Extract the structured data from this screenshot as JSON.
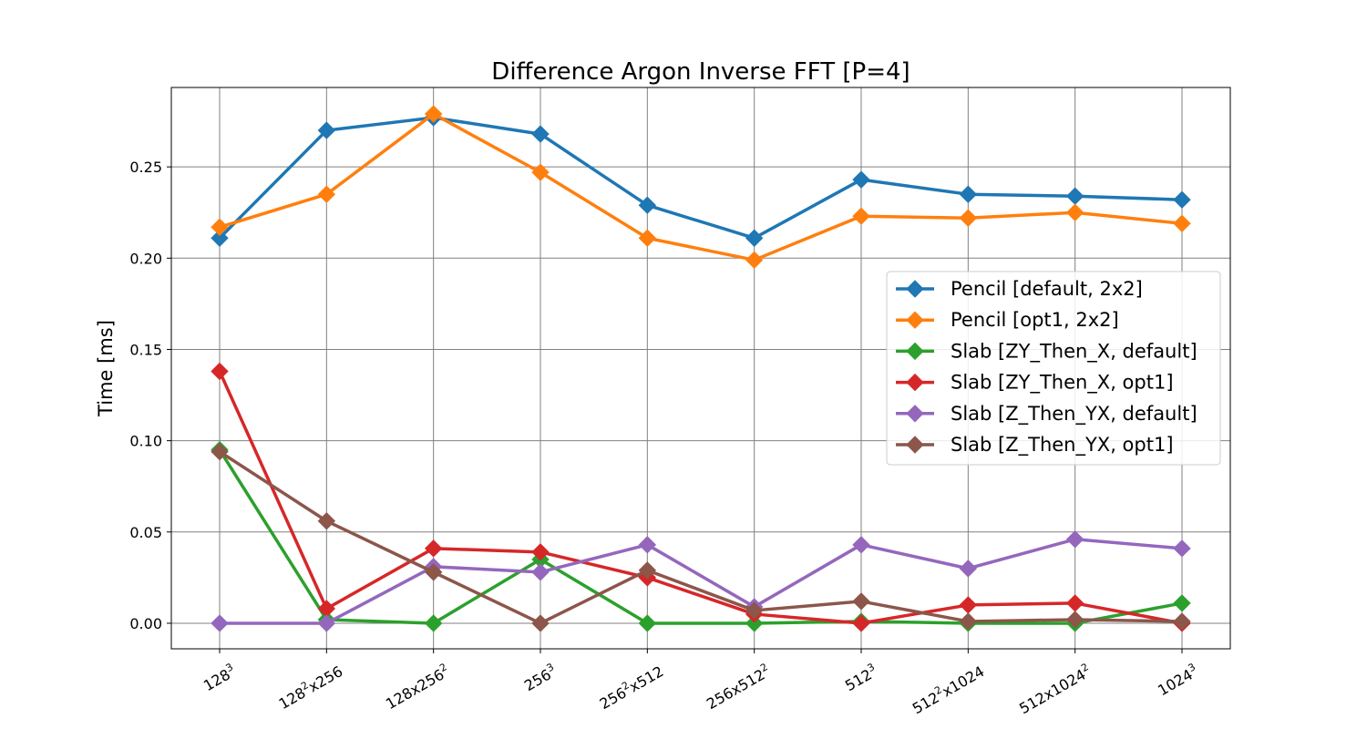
{
  "chart_data": {
    "type": "line",
    "title": "Difference Argon Inverse FFT [P=4]",
    "xlabel": "",
    "ylabel": "Time [ms]",
    "ylim": [
      -0.014,
      0.2935
    ],
    "yticks": [
      0.0,
      0.05,
      0.1,
      0.15,
      0.2,
      0.25
    ],
    "ytick_labels": [
      "0.00",
      "0.05",
      "0.10",
      "0.15",
      "0.20",
      "0.25"
    ],
    "categories": [
      {
        "base": "128",
        "sup": "3",
        "rest": "",
        "sup2": ""
      },
      {
        "base": "128",
        "sup": "2",
        "rest": "x256",
        "sup2": ""
      },
      {
        "base": "128x256",
        "sup": "2",
        "rest": "",
        "sup2": ""
      },
      {
        "base": "256",
        "sup": "3",
        "rest": "",
        "sup2": ""
      },
      {
        "base": "256",
        "sup": "2",
        "rest": "x512",
        "sup2": ""
      },
      {
        "base": "256x512",
        "sup": "2",
        "rest": "",
        "sup2": ""
      },
      {
        "base": "512",
        "sup": "3",
        "rest": "",
        "sup2": ""
      },
      {
        "base": "512",
        "sup": "2",
        "rest": "x1024",
        "sup2": ""
      },
      {
        "base": "512x1024",
        "sup": "2",
        "rest": "",
        "sup2": ""
      },
      {
        "base": "1024",
        "sup": "3",
        "rest": "",
        "sup2": ""
      }
    ],
    "grid": true,
    "legend_position": "center-right",
    "marker": "diamond",
    "series": [
      {
        "name": "Pencil [default, 2x2]",
        "color": "#1f77b4",
        "values": [
          0.211,
          0.27,
          0.277,
          0.268,
          0.229,
          0.211,
          0.243,
          0.235,
          0.234,
          0.232
        ]
      },
      {
        "name": "Pencil [opt1, 2x2]",
        "color": "#ff7f0e",
        "values": [
          0.217,
          0.235,
          0.279,
          0.247,
          0.211,
          0.199,
          0.223,
          0.222,
          0.225,
          0.219
        ]
      },
      {
        "name": "Slab [ZY_Then_X, default]",
        "color": "#2ca02c",
        "values": [
          0.095,
          0.002,
          0.0,
          0.035,
          0.0,
          0.0,
          0.001,
          0.0,
          0.0,
          0.011
        ]
      },
      {
        "name": "Slab [ZY_Then_X, opt1]",
        "color": "#d62728",
        "values": [
          0.138,
          0.008,
          0.041,
          0.039,
          0.025,
          0.005,
          0.0,
          0.01,
          0.011,
          0.0
        ]
      },
      {
        "name": "Slab [Z_Then_YX, default]",
        "color": "#9467bd",
        "values": [
          0.0,
          0.0,
          0.031,
          0.028,
          0.043,
          0.009,
          0.043,
          0.03,
          0.046,
          0.041
        ]
      },
      {
        "name": "Slab [Z_Then_YX, opt1]",
        "color": "#8c564b",
        "values": [
          0.094,
          0.056,
          0.028,
          0.0,
          0.029,
          0.007,
          0.012,
          0.001,
          0.002,
          0.001
        ]
      }
    ]
  }
}
